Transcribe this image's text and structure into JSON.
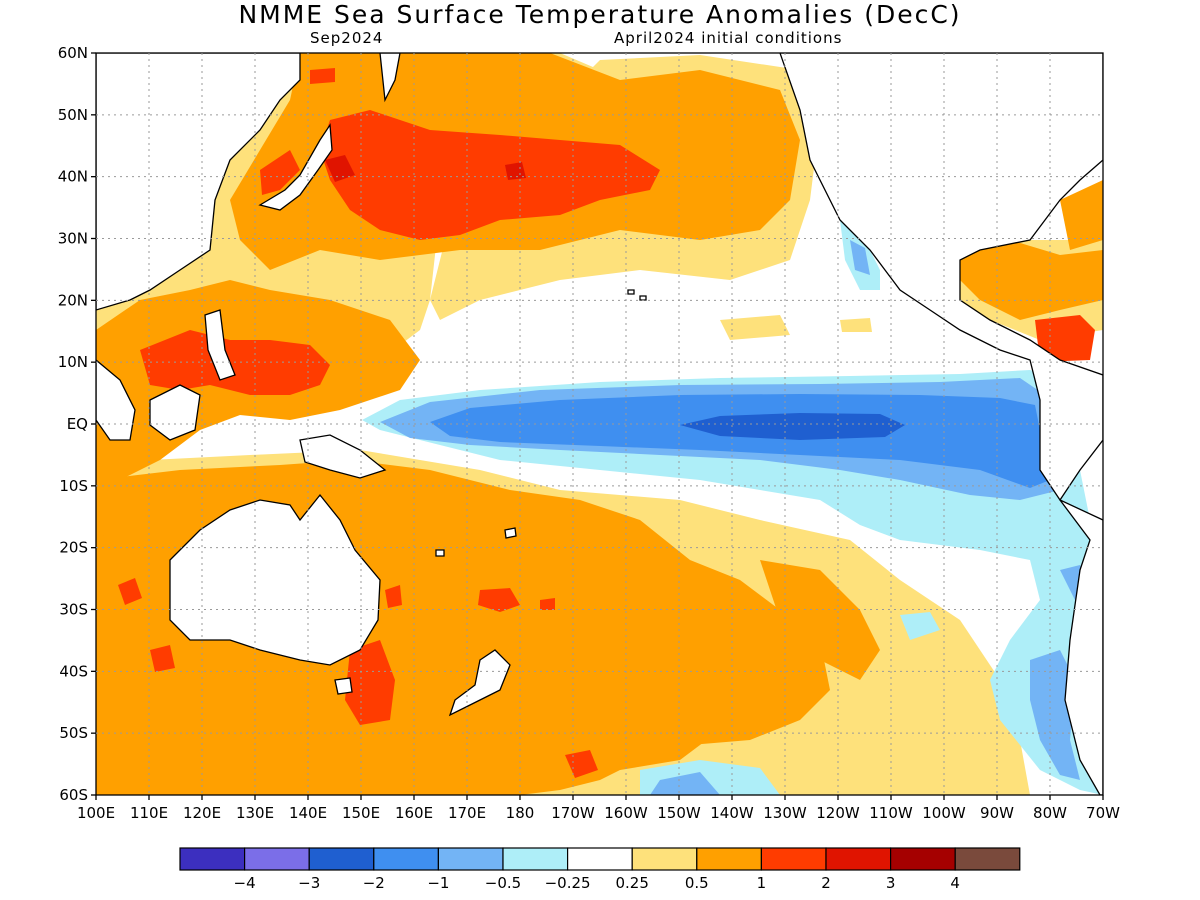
{
  "header": {
    "title": "NMME Sea Surface Temperature Anomalies (DecC)",
    "valid_month": "Sep2024",
    "init_conditions": "April2024 initial conditions"
  },
  "axes": {
    "lat_labels": [
      "60N",
      "50N",
      "40N",
      "30N",
      "20N",
      "10N",
      "EQ",
      "10S",
      "20S",
      "30S",
      "40S",
      "50S",
      "60S"
    ],
    "lon_labels": [
      "100E",
      "110E",
      "120E",
      "130E",
      "140E",
      "150E",
      "160E",
      "170E",
      "180",
      "170W",
      "160W",
      "150W",
      "140W",
      "130W",
      "120W",
      "110W",
      "100W",
      "90W",
      "80W",
      "70W"
    ]
  },
  "colorbar": {
    "colors": [
      "#3c2fbf",
      "#7b6ee8",
      "#1f5fd0",
      "#3f8ff0",
      "#73b4f5",
      "#aeeef8",
      "#ffffff",
      "#fee17b",
      "#ffa000",
      "#ff3c00",
      "#e01400",
      "#a50000",
      "#7a4a3c"
    ],
    "labels": [
      "−4",
      "−3",
      "−2",
      "−1",
      "−0.5",
      "−0.25",
      "0.25",
      "0.5",
      "1",
      "2",
      "3",
      "4"
    ]
  },
  "palette": {
    "neg4": "#3c2fbf",
    "neg3": "#7b6ee8",
    "neg2": "#1f5fd0",
    "neg1": "#3f8ff0",
    "neg05": "#73b4f5",
    "neg025": "#aeeef8",
    "neutral": "#ffffff",
    "pos025": "#fee17b",
    "pos05": "#ffa000",
    "pos1": "#ff3c00",
    "pos2": "#e01400",
    "pos3": "#a50000",
    "pos4": "#7a4a3c"
  }
}
